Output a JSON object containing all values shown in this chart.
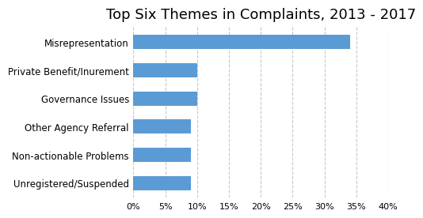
{
  "title": "Top Six Themes in Complaints, 2013 - 2017",
  "categories": [
    "Unregistered/Suspended",
    "Non-actionable Problems",
    "Other Agency Referral",
    "Governance Issues",
    "Private Benefit/Inurement",
    "Misrepresentation"
  ],
  "values": [
    0.09,
    0.09,
    0.09,
    0.1,
    0.1,
    0.34
  ],
  "bar_color": "#5B9BD5",
  "xlim": [
    0,
    0.4
  ],
  "xticks": [
    0.0,
    0.05,
    0.1,
    0.15,
    0.2,
    0.25,
    0.3,
    0.35,
    0.4
  ],
  "xtick_labels": [
    "0%",
    "5%",
    "10%",
    "15%",
    "20%",
    "25%",
    "30%",
    "35%",
    "40%"
  ],
  "grid_color": "#C8C8C8",
  "background_color": "#FFFFFF",
  "title_fontsize": 13,
  "tick_fontsize": 8,
  "label_fontsize": 8.5,
  "bar_height": 0.5
}
